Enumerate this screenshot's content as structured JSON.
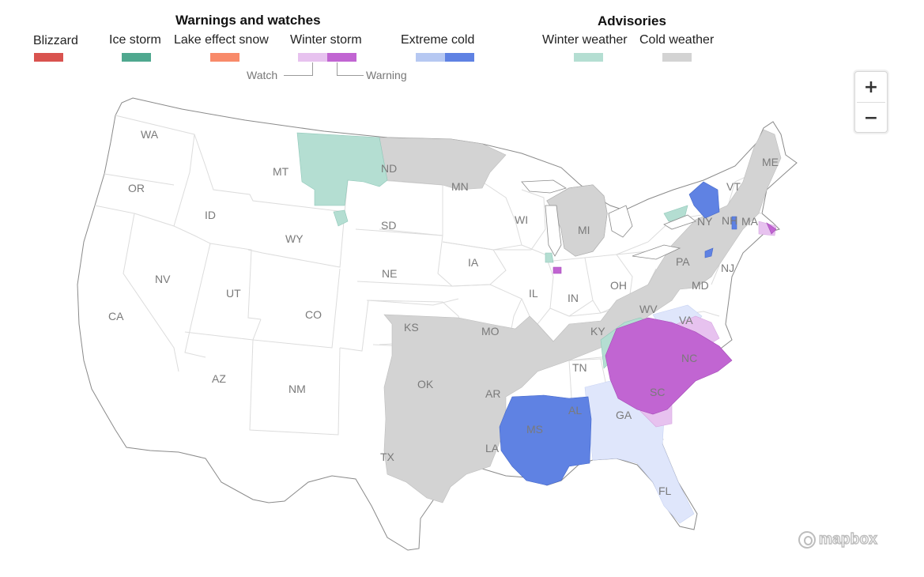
{
  "legend": {
    "warnings_title": "Warnings and watches",
    "advisories_title": "Advisories",
    "items": [
      {
        "label": "Blizzard",
        "colors": [
          "#d9534f"
        ]
      },
      {
        "label": "Ice storm",
        "colors": [
          "#4fa88f"
        ]
      },
      {
        "label": "Lake effect snow",
        "colors": [
          "#f88a6a"
        ]
      },
      {
        "label": "Winter storm",
        "colors": [
          "#e7c2ef",
          "#c165d2"
        ]
      },
      {
        "label": "Extreme cold",
        "colors": [
          "#b6c8f2",
          "#5f82e3"
        ]
      },
      {
        "label": "Winter weather",
        "colors": [
          "#b4ded2"
        ]
      },
      {
        "label": "Cold weather",
        "colors": [
          "#d3d3d3"
        ]
      }
    ],
    "watch_label": "Watch",
    "warning_label": "Warning"
  },
  "states": [
    {
      "abbr": "WA"
    },
    {
      "abbr": "OR"
    },
    {
      "abbr": "CA"
    },
    {
      "abbr": "ID"
    },
    {
      "abbr": "NV"
    },
    {
      "abbr": "UT"
    },
    {
      "abbr": "AZ"
    },
    {
      "abbr": "MT"
    },
    {
      "abbr": "WY"
    },
    {
      "abbr": "CO"
    },
    {
      "abbr": "NM"
    },
    {
      "abbr": "ND"
    },
    {
      "abbr": "SD"
    },
    {
      "abbr": "NE"
    },
    {
      "abbr": "KS"
    },
    {
      "abbr": "OK"
    },
    {
      "abbr": "TX"
    },
    {
      "abbr": "MN"
    },
    {
      "abbr": "IA"
    },
    {
      "abbr": "MO"
    },
    {
      "abbr": "AR"
    },
    {
      "abbr": "LA"
    },
    {
      "abbr": "WI"
    },
    {
      "abbr": "IL"
    },
    {
      "abbr": "MI"
    },
    {
      "abbr": "IN"
    },
    {
      "abbr": "OH"
    },
    {
      "abbr": "KY"
    },
    {
      "abbr": "TN"
    },
    {
      "abbr": "MS"
    },
    {
      "abbr": "AL"
    },
    {
      "abbr": "GA"
    },
    {
      "abbr": "FL"
    },
    {
      "abbr": "SC"
    },
    {
      "abbr": "NC"
    },
    {
      "abbr": "VA"
    },
    {
      "abbr": "WV"
    },
    {
      "abbr": "PA"
    },
    {
      "abbr": "NY"
    },
    {
      "abbr": "VT"
    },
    {
      "abbr": "NH"
    },
    {
      "abbr": "ME"
    },
    {
      "abbr": "MA"
    },
    {
      "abbr": "NJ"
    },
    {
      "abbr": "MD"
    }
  ],
  "controls": {
    "zoom_in": "+",
    "zoom_out": "−"
  },
  "attribution": "mapbox"
}
